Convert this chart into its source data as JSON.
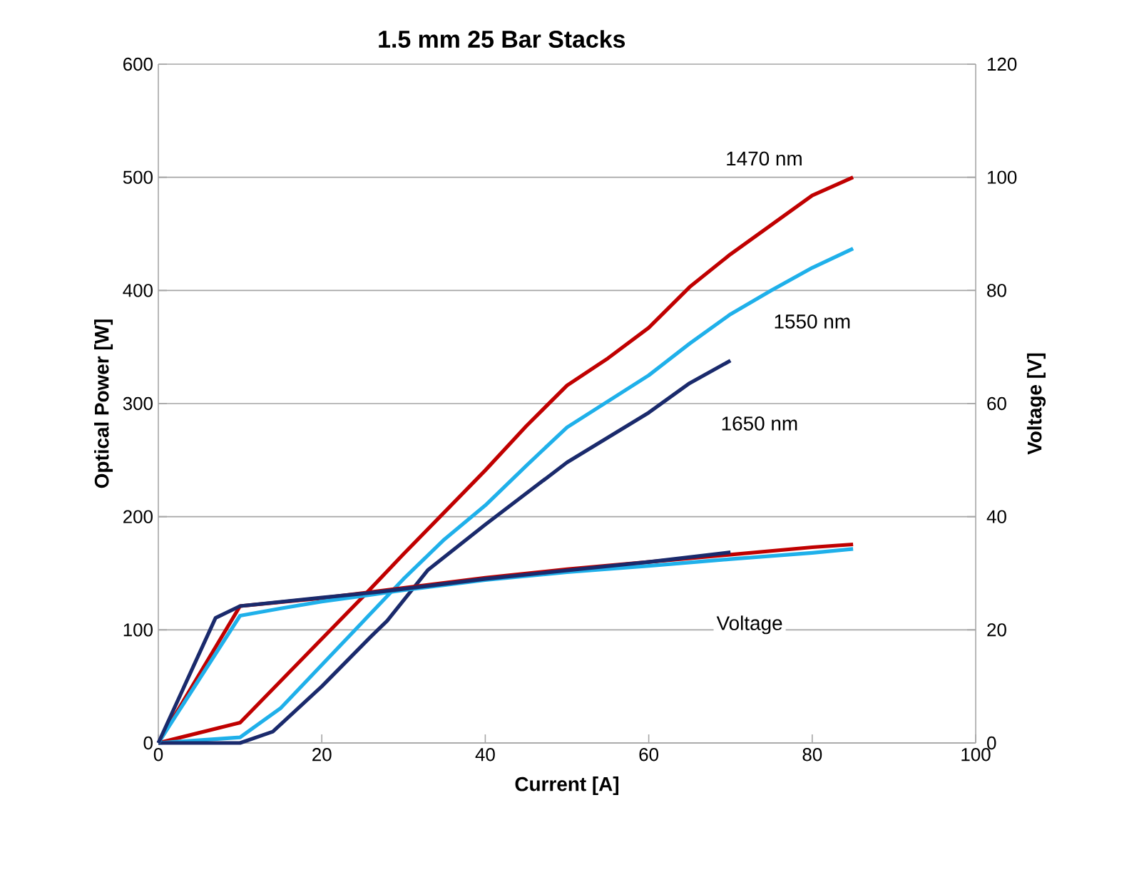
{
  "chart_data": {
    "type": "line",
    "title": "1.5 mm 25 Bar Stacks",
    "xlabel": "Current [A]",
    "ylabel": "Optical Power [W]",
    "y2label": "Voltage [V]",
    "xlim": [
      0,
      100
    ],
    "xticks": [
      0,
      20,
      40,
      60,
      80,
      100
    ],
    "ylim": [
      0,
      600
    ],
    "yticks": [
      0,
      100,
      200,
      300,
      400,
      500,
      600
    ],
    "y2lim": [
      0,
      120
    ],
    "y2ticks": [
      0,
      20,
      40,
      60,
      80,
      100,
      120
    ],
    "grid": "y",
    "marker": "none",
    "line_style": "solid",
    "annotations": [
      "Voltage"
    ],
    "series": [
      {
        "name": "1470 nm",
        "color": "#c00000",
        "x": [
          0,
          10,
          15,
          20,
          25,
          30,
          35,
          40,
          45,
          50,
          55,
          60,
          65,
          70,
          75,
          80,
          85
        ],
        "values": [
          0,
          18,
          55,
          92,
          129,
          167,
          204,
          241,
          280,
          316,
          340,
          367,
          403,
          432,
          458,
          484,
          500
        ]
      },
      {
        "name": "1550 nm",
        "color": "#1fb0ea",
        "x": [
          0,
          10,
          15,
          20,
          25,
          30,
          35,
          40,
          45,
          50,
          55,
          60,
          65,
          70,
          75,
          80,
          85
        ],
        "values": [
          0,
          5,
          31,
          69,
          107,
          145,
          180,
          210,
          245,
          279,
          302,
          325,
          353,
          379,
          400,
          420,
          437
        ]
      },
      {
        "name": "1650 nm",
        "color": "#1a2a6c",
        "x": [
          0,
          10,
          14,
          20,
          26,
          28,
          33,
          40,
          50,
          60,
          65,
          70
        ],
        "values": [
          0,
          0,
          10,
          50,
          94,
          108,
          153,
          193,
          248,
          292,
          318,
          338
        ]
      },
      {
        "color": "#c00000",
        "axis": "y2",
        "x": [
          0,
          10,
          20,
          30,
          40,
          50,
          60,
          70,
          80,
          85
        ],
        "values": [
          0,
          24.2,
          25.6,
          27.4,
          29.2,
          30.7,
          32,
          33.3,
          34.6,
          35.1
        ]
      },
      {
        "color": "#1fb0ea",
        "axis": "y2",
        "x": [
          0,
          10,
          15,
          20,
          30,
          40,
          50,
          60,
          70,
          80,
          85
        ],
        "values": [
          0,
          22.5,
          23.8,
          25,
          27,
          28.8,
          30.2,
          31.3,
          32.5,
          33.6,
          34.3
        ]
      },
      {
        "color": "#1a2a6c",
        "axis": "y2",
        "x": [
          0,
          7,
          10,
          20,
          27,
          40,
          50,
          60,
          70
        ],
        "values": [
          0,
          22.1,
          24.2,
          25.7,
          26.7,
          29,
          30.5,
          32,
          33.7
        ]
      }
    ]
  }
}
